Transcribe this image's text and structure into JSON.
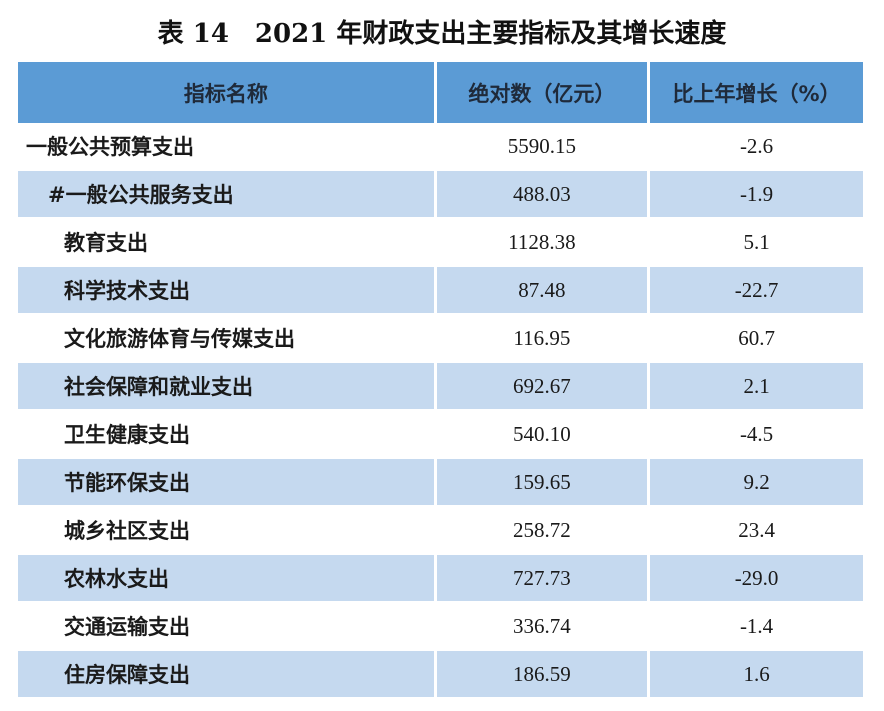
{
  "title": "表 14　2021 年财政支出主要指标及其增长速度",
  "table": {
    "headers": [
      "指标名称",
      "绝对数（亿元）",
      "比上年增长（%）"
    ],
    "rows": [
      {
        "name": "一般公共预算支出",
        "value": "5590.15",
        "growth": "-2.6"
      },
      {
        "name": "#一般公共服务支出",
        "value": "488.03",
        "growth": "-1.9"
      },
      {
        "name": "教育支出",
        "value": "1128.38",
        "growth": "5.1"
      },
      {
        "name": "科学技术支出",
        "value": "87.48",
        "growth": "-22.7"
      },
      {
        "name": "文化旅游体育与传媒支出",
        "value": "116.95",
        "growth": "60.7"
      },
      {
        "name": "社会保障和就业支出",
        "value": "692.67",
        "growth": "2.1"
      },
      {
        "name": "卫生健康支出",
        "value": "540.10",
        "growth": "-4.5"
      },
      {
        "name": "节能环保支出",
        "value": "159.65",
        "growth": "9.2"
      },
      {
        "name": "城乡社区支出",
        "value": "258.72",
        "growth": "23.4"
      },
      {
        "name": "农林水支出",
        "value": "727.73",
        "growth": "-29.0"
      },
      {
        "name": "交通运输支出",
        "value": "336.74",
        "growth": "-1.4"
      },
      {
        "name": "住房保障支出",
        "value": "186.59",
        "growth": "1.6"
      }
    ]
  }
}
